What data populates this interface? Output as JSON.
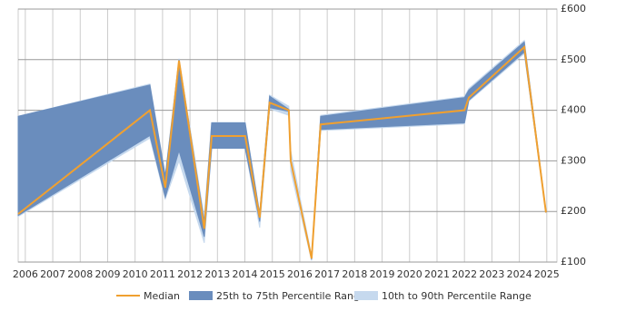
{
  "chart_data": {
    "type": "line-band",
    "x": [
      2005.74,
      2010.54,
      2011.1,
      2011.6,
      2012.52,
      2012.79,
      2014.01,
      2014.54,
      2014.9,
      2015.6,
      2015.67,
      2016.43,
      2016.76,
      2022.0,
      2022.16,
      2024.18,
      2024.97
    ],
    "series": [
      {
        "name": "10th to 90th Percentile Range",
        "color": "#c6d9ee",
        "low": [
          190,
          345,
          225,
          300,
          138,
          325,
          325,
          168,
          403,
          390,
          280,
          103,
          360,
          373,
          418,
          512,
          197
        ],
        "high": [
          388,
          452,
          272,
          502,
          188,
          376,
          376,
          197,
          430,
          408,
          320,
          112,
          390,
          427,
          443,
          538,
          201
        ]
      },
      {
        "name": "25th to 75th Percentile Range",
        "color": "#6a8dbd",
        "low": [
          192,
          350,
          228,
          320,
          150,
          325,
          325,
          180,
          405,
          398,
          300,
          105,
          362,
          375,
          420,
          515,
          198
        ],
        "high": [
          388,
          450,
          270,
          500,
          180,
          375,
          375,
          195,
          428,
          402,
          300,
          110,
          388,
          425,
          440,
          535,
          200
        ]
      },
      {
        "name": "Median",
        "color": "#f0a030",
        "values": [
          195,
          400,
          247,
          498,
          166,
          349,
          349,
          188,
          415,
          400,
          300,
          107,
          372,
          400,
          425,
          525,
          198
        ]
      }
    ],
    "xlim": [
      2005.74,
      2025.37
    ],
    "xticks": [
      2006,
      2007,
      2008,
      2009,
      2010,
      2011,
      2012,
      2013,
      2014,
      2015,
      2016,
      2017,
      2018,
      2019,
      2020,
      2021,
      2022,
      2023,
      2024,
      2025
    ],
    "ylim": [
      100,
      600
    ],
    "yticks": [
      {
        "value": 100,
        "label": "£100"
      },
      {
        "value": 200,
        "label": "£200"
      },
      {
        "value": 300,
        "label": "£300"
      },
      {
        "value": 400,
        "label": "£400"
      },
      {
        "value": 500,
        "label": "£500"
      },
      {
        "value": 600,
        "label": "£600"
      }
    ],
    "grid": true
  }
}
